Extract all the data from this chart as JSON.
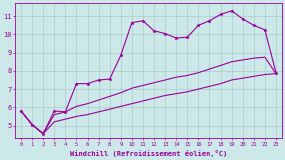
{
  "background_color": "#cce8e8",
  "grid_color": "#aacccc",
  "line_color": "#990099",
  "xlabel": "Windchill (Refroidissement éolien,°C)",
  "ylabel_ticks": [
    5,
    6,
    7,
    8,
    9,
    10,
    11
  ],
  "xlim": [
    -0.5,
    23.5
  ],
  "ylim": [
    4.3,
    11.7
  ],
  "xticks": [
    0,
    1,
    2,
    3,
    4,
    5,
    6,
    7,
    8,
    9,
    10,
    11,
    12,
    13,
    14,
    15,
    16,
    17,
    18,
    19,
    20,
    21,
    22,
    23
  ],
  "line1_y": [
    5.8,
    5.05,
    4.55,
    5.8,
    5.75,
    7.3,
    7.3,
    7.5,
    7.55,
    8.85,
    10.65,
    10.75,
    10.2,
    10.05,
    9.8,
    9.85,
    10.5,
    10.75,
    11.1,
    11.3,
    10.85,
    10.5,
    10.25,
    7.9
  ],
  "line2_y": [
    5.8,
    5.05,
    4.55,
    5.6,
    5.75,
    6.05,
    6.2,
    6.4,
    6.6,
    6.8,
    7.05,
    7.2,
    7.35,
    7.5,
    7.65,
    7.75,
    7.9,
    8.1,
    8.3,
    8.5,
    8.6,
    8.7,
    8.75,
    7.85
  ],
  "line3_y": [
    5.8,
    5.05,
    4.55,
    5.2,
    5.35,
    5.5,
    5.6,
    5.75,
    5.9,
    6.05,
    6.2,
    6.35,
    6.5,
    6.65,
    6.75,
    6.85,
    7.0,
    7.15,
    7.3,
    7.5,
    7.6,
    7.7,
    7.8,
    7.85
  ]
}
